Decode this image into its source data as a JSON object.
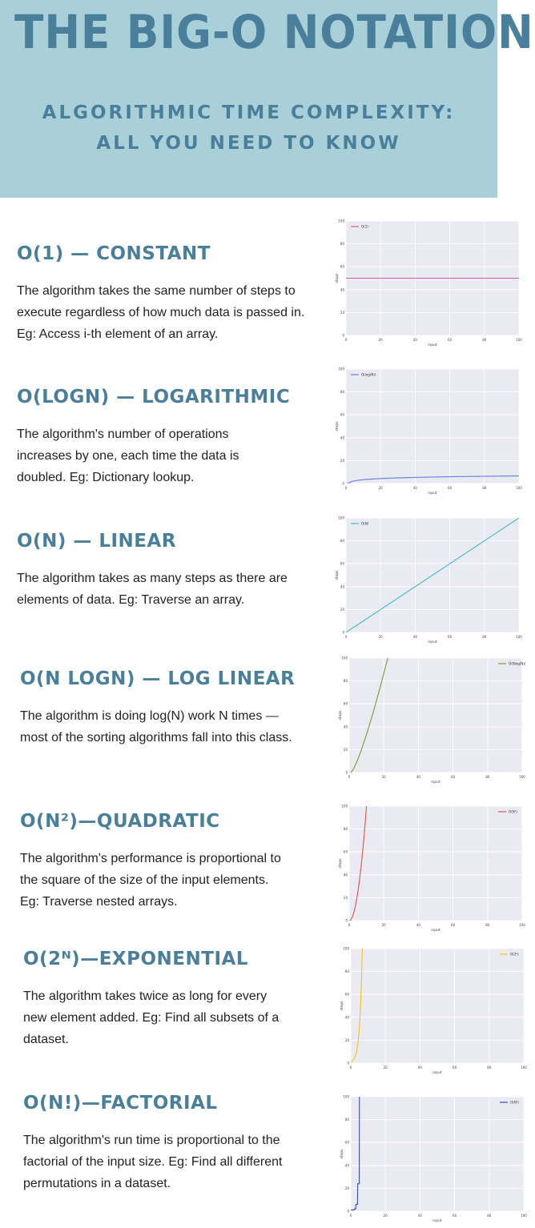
{
  "header": {
    "title": "THE BIG-O NOTATION",
    "subtitle_line1": "ALGORITHMIC TIME COMPLEXITY:",
    "subtitle_line2": "ALL YOU NEED TO KNOW"
  },
  "sections": [
    {
      "title": "O(1) — CONSTANT",
      "description": "The algorithm takes the same number of steps to execute regardless of how much data is passed in. Eg: Access i-th element of an array."
    },
    {
      "title": "O(LOGN) — LOGARITHMIC",
      "description": "The algorithm's number of operations increases by one, each time the data is doubled. Eg: Dictionary lookup."
    },
    {
      "title": "O(N) — LINEAR",
      "description": "The algorithm takes as many steps as there are elements of data. Eg: Traverse an array."
    },
    {
      "title": "O(N LOGN) — LOG LINEAR",
      "description": "The algorithm is doing log(N) work N times — most of the sorting algorithms fall into this class."
    },
    {
      "title": "O(N²)—QUADRATIC",
      "description": "The algorithm's performance is proportional to the square of the size of the input elements. Eg: Traverse nested arrays."
    },
    {
      "title": "O(2ᴺ)—EXPONENTIAL",
      "description": "The algorithm takes twice as long for every new element added. Eg: Find all subsets of a dataset."
    },
    {
      "title": "O(N!)—FACTORIAL",
      "description": "The algorithm's run time is proportional to the factorial of the input size. Eg: Find all different permutations in a dataset."
    }
  ],
  "chart_data": [
    {
      "type": "line",
      "func": "const",
      "series": [
        {
          "name": "O(1)",
          "color": "#e0569f"
        }
      ],
      "xlabel": "input",
      "ylabel": "steps",
      "xlim": [
        0,
        100
      ],
      "ylim": [
        0,
        100
      ],
      "xticks": [
        0,
        20,
        40,
        60,
        80,
        100
      ],
      "yticks": [
        0,
        20,
        40,
        60,
        80,
        100
      ],
      "values": {
        "y": 50
      },
      "legend": "top-left",
      "grid": true
    },
    {
      "type": "line",
      "func": "log",
      "series": [
        {
          "name": "O(log(N))",
          "color": "#5f7fe0"
        }
      ],
      "xlabel": "input",
      "ylabel": "steps",
      "xlim": [
        0,
        100
      ],
      "ylim": [
        0,
        100
      ],
      "xticks": [
        0,
        20,
        40,
        60,
        80,
        100
      ],
      "yticks": [
        0,
        20,
        40,
        60,
        80,
        100
      ],
      "legend": "top-left",
      "grid": true
    },
    {
      "type": "line",
      "func": "linear",
      "series": [
        {
          "name": "O(N)",
          "color": "#3cbcc6"
        }
      ],
      "xlabel": "input",
      "ylabel": "steps",
      "xlim": [
        0,
        100
      ],
      "ylim": [
        0,
        100
      ],
      "xticks": [
        0,
        20,
        40,
        60,
        80,
        100
      ],
      "yticks": [
        0,
        20,
        40,
        60,
        80,
        100
      ],
      "legend": "top-left",
      "grid": true
    },
    {
      "type": "line",
      "func": "nlogn",
      "series": [
        {
          "name": "O(Nlog(N))",
          "color": "#7a9a30"
        }
      ],
      "xlabel": "input",
      "ylabel": "steps",
      "xlim": [
        0,
        100
      ],
      "ylim": [
        0,
        100
      ],
      "xticks": [
        0,
        20,
        40,
        60,
        80,
        100
      ],
      "yticks": [
        0,
        20,
        40,
        60,
        80,
        100
      ],
      "legend": "top-right",
      "grid": true
    },
    {
      "type": "line",
      "func": "quad",
      "series": [
        {
          "name": "O(N²)",
          "color": "#d9534f"
        }
      ],
      "xlabel": "input",
      "ylabel": "steps",
      "xlim": [
        0,
        100
      ],
      "ylim": [
        0,
        100
      ],
      "xticks": [
        0,
        20,
        40,
        60,
        80,
        100
      ],
      "yticks": [
        0,
        20,
        40,
        60,
        80,
        100
      ],
      "legend": "top-right",
      "grid": true
    },
    {
      "type": "line",
      "func": "exp",
      "series": [
        {
          "name": "O(2ᴺ)",
          "color": "#f2c318"
        }
      ],
      "xlabel": "input",
      "ylabel": "steps",
      "xlim": [
        0,
        100
      ],
      "ylim": [
        0,
        100
      ],
      "xticks": [
        0,
        20,
        40,
        60,
        80,
        100
      ],
      "yticks": [
        0,
        20,
        40,
        60,
        80,
        100
      ],
      "legend": "top-right",
      "grid": true
    },
    {
      "type": "line",
      "func": "fact",
      "series": [
        {
          "name": "O(N!)",
          "color": "#3a4fa0"
        }
      ],
      "xlabel": "input",
      "ylabel": "steps",
      "xlim": [
        0,
        100
      ],
      "ylim": [
        0,
        100
      ],
      "xticks": [
        0,
        20,
        40,
        60,
        80,
        100
      ],
      "yticks": [
        0,
        20,
        40,
        60,
        80,
        100
      ],
      "legend": "top-right",
      "grid": true
    }
  ]
}
